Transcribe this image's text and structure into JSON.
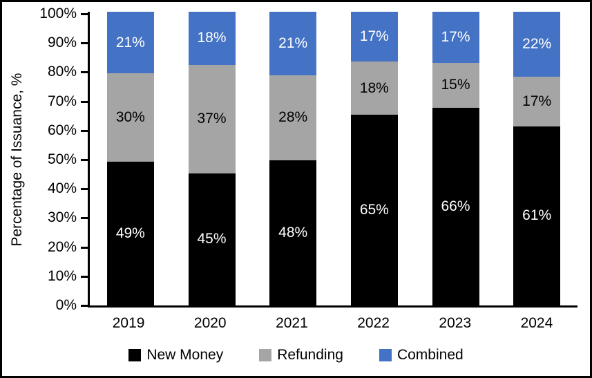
{
  "chart_data": {
    "type": "bar",
    "variant": "stacked-100",
    "title": "",
    "xlabel": "",
    "ylabel": "Percentage of Issuance, %",
    "ylim": [
      0,
      100
    ],
    "ytick_step": 10,
    "ytick_labels": [
      "0%",
      "10%",
      "20%",
      "30%",
      "40%",
      "50%",
      "60%",
      "70%",
      "80%",
      "90%",
      "100%"
    ],
    "categories": [
      "2019",
      "2020",
      "2021",
      "2022",
      "2023",
      "2024"
    ],
    "series": [
      {
        "name": "New Money",
        "color": "#000000",
        "label_color": "#ffffff",
        "values": [
          49,
          45,
          48,
          65,
          66,
          61
        ],
        "labels": [
          "49%",
          "45%",
          "48%",
          "65%",
          "66%",
          "61%"
        ]
      },
      {
        "name": "Refunding",
        "color": "#a5a5a5",
        "label_color": "#000000",
        "values": [
          30,
          37,
          28,
          18,
          15,
          17
        ],
        "labels": [
          "30%",
          "37%",
          "28%",
          "18%",
          "15%",
          "17%"
        ]
      },
      {
        "name": "Combined",
        "color": "#4472c4",
        "label_color": "#ffffff",
        "values": [
          21,
          18,
          21,
          17,
          17,
          22
        ],
        "labels": [
          "21%",
          "18%",
          "21%",
          "17%",
          "17%",
          "22%"
        ]
      }
    ],
    "data_labels_inside": true,
    "legend_position": "bottom",
    "grid": false,
    "axis_color": "#000000",
    "background_color": "#ffffff",
    "frame_border_color": "#000000"
  }
}
